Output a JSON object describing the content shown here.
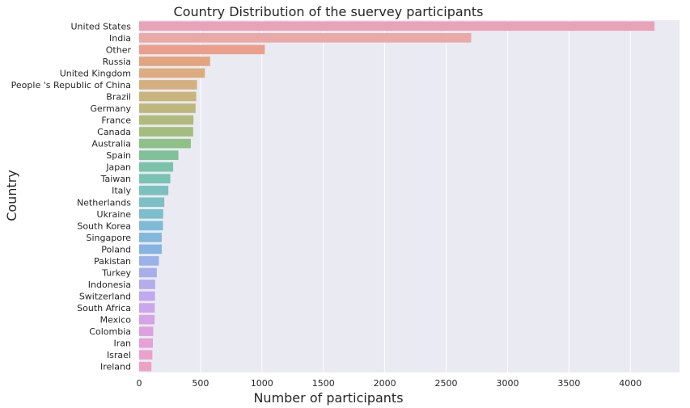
{
  "chart_data": {
    "type": "bar",
    "orientation": "horizontal",
    "title": "Country Distribution of the suervey participants",
    "xlabel": "Number of participants",
    "ylabel": "Country",
    "xlim": [
      0,
      4400
    ],
    "xticks": [
      0,
      500,
      1000,
      1500,
      2000,
      2500,
      3000,
      3500,
      4000
    ],
    "grid": true,
    "background": "#eaeaf2",
    "categories": [
      "United States",
      "India",
      "Other",
      "Russia",
      "United Kingdom",
      "People 's Republic of China",
      "Brazil",
      "Germany",
      "France",
      "Canada",
      "Australia",
      "Spain",
      "Japan",
      "Taiwan",
      "Italy",
      "Netherlands",
      "Ukraine",
      "South Korea",
      "Singapore",
      "Poland",
      "Pakistan",
      "Turkey",
      "Indonesia",
      "Switzerland",
      "South Africa",
      "Mexico",
      "Colombia",
      "Iran",
      "Israel",
      "Ireland"
    ],
    "values": [
      4197,
      2704,
      1023,
      578,
      535,
      471,
      465,
      460,
      442,
      440,
      421,
      320,
      277,
      254,
      238,
      205,
      196,
      194,
      184,
      184,
      161,
      144,
      131,
      129,
      127,
      126,
      115,
      112,
      108,
      100
    ],
    "colors": [
      "#e8a3b8",
      "#eaa8a6",
      "#ea9f8c",
      "#e1a47e",
      "#dcab7e",
      "#d3b07e",
      "#c9b47e",
      "#bdb77e",
      "#b0ba7e",
      "#a3bd7e",
      "#8ec186",
      "#7fc198",
      "#7bc2a8",
      "#7ac2b4",
      "#7bc1bd",
      "#7cc0c5",
      "#7dbecd",
      "#7fbbd5",
      "#82b8dc",
      "#86b3e1",
      "#9ab2ea",
      "#a6afec",
      "#b4acec",
      "#c0a9ec",
      "#cba6ea",
      "#d5a3e6",
      "#dea1e0",
      "#e6a1d7",
      "#eaa2cc",
      "#eca3c2"
    ]
  }
}
